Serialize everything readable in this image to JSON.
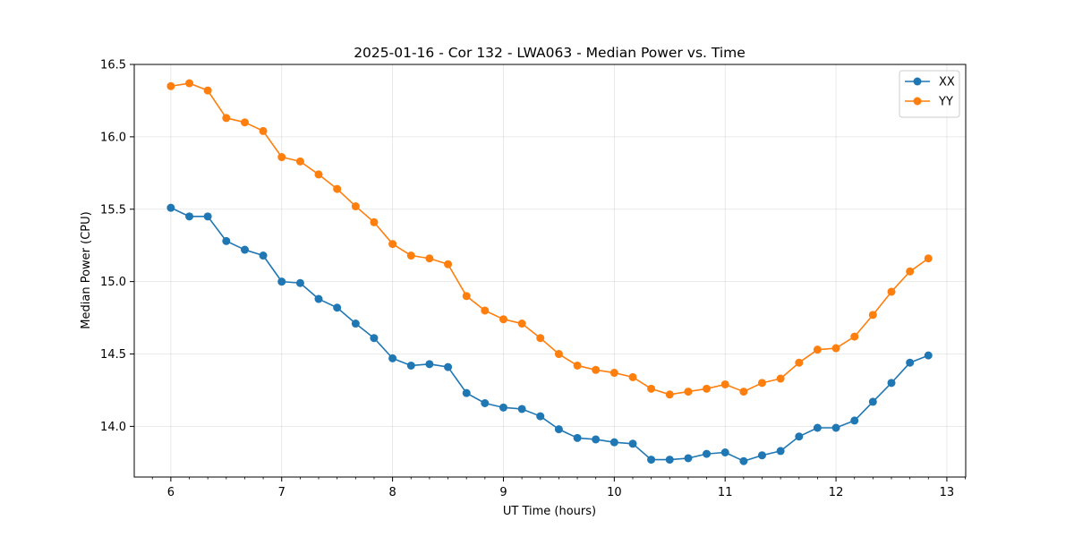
{
  "chart_data": {
    "type": "line",
    "title": "2025-01-16 - Cor 132 - LWA063 - Median Power vs. Time",
    "xlabel": "UT Time (hours)",
    "ylabel": "Median Power (CPU)",
    "xlim": [
      5.67,
      13.17
    ],
    "ylim": [
      13.65,
      16.5
    ],
    "xticks": [
      6,
      7,
      8,
      9,
      10,
      11,
      12,
      13
    ],
    "xtick_labels": [
      "6",
      "7",
      "8",
      "9",
      "10",
      "11",
      "12",
      "13"
    ],
    "yticks": [
      14.0,
      14.5,
      15.0,
      15.5,
      16.0,
      16.5
    ],
    "ytick_labels": [
      "14.0",
      "14.5",
      "15.0",
      "15.5",
      "16.0",
      "16.5"
    ],
    "grid": true,
    "legend_position": "top-right",
    "x": [
      6.0,
      6.167,
      6.333,
      6.5,
      6.667,
      6.833,
      7.0,
      7.167,
      7.333,
      7.5,
      7.667,
      7.833,
      8.0,
      8.167,
      8.333,
      8.5,
      8.667,
      8.833,
      9.0,
      9.167,
      9.333,
      9.5,
      9.667,
      9.833,
      10.0,
      10.167,
      10.333,
      10.5,
      10.667,
      10.833,
      11.0,
      11.167,
      11.333,
      11.5,
      11.667,
      11.833,
      12.0,
      12.167,
      12.333,
      12.5,
      12.667,
      12.833
    ],
    "series": [
      {
        "name": "XX",
        "color": "#1f77b4",
        "values": [
          15.51,
          15.45,
          15.45,
          15.28,
          15.22,
          15.18,
          15.0,
          14.99,
          14.88,
          14.82,
          14.71,
          14.61,
          14.47,
          14.42,
          14.43,
          14.41,
          14.23,
          14.16,
          14.13,
          14.12,
          14.07,
          13.98,
          13.92,
          13.91,
          13.89,
          13.88,
          13.77,
          13.77,
          13.78,
          13.81,
          13.82,
          13.76,
          13.8,
          13.83,
          13.93,
          13.99,
          13.99,
          14.04,
          14.17,
          14.3,
          14.44,
          14.49
        ]
      },
      {
        "name": "YY",
        "color": "#ff7f0e",
        "values": [
          16.35,
          16.37,
          16.32,
          16.13,
          16.1,
          16.04,
          15.86,
          15.83,
          15.74,
          15.64,
          15.52,
          15.41,
          15.26,
          15.18,
          15.16,
          15.12,
          14.9,
          14.8,
          14.74,
          14.71,
          14.61,
          14.5,
          14.42,
          14.39,
          14.37,
          14.34,
          14.26,
          14.22,
          14.24,
          14.26,
          14.29,
          14.24,
          14.3,
          14.33,
          14.44,
          14.53,
          14.54,
          14.62,
          14.77,
          14.93,
          15.07,
          15.16
        ]
      }
    ]
  }
}
